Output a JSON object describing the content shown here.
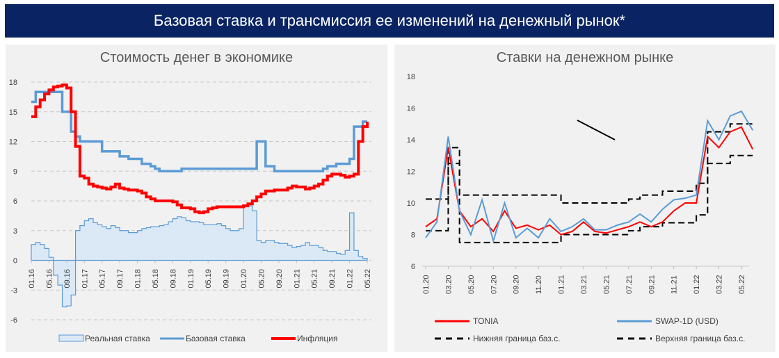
{
  "banner_title": "Базовая ставка и трансмиссия ее изменений на денежный рынок*",
  "chart_data": [
    {
      "type": "line",
      "title": "Стоимость денег в экономике",
      "x_tick_labels": [
        "01.16",
        "05.16",
        "09.16",
        "01.17",
        "05.17",
        "09.17",
        "01.18",
        "05.18",
        "09.18",
        "01.19",
        "05.19",
        "09.19",
        "01.20",
        "05.20",
        "09.20",
        "01.21",
        "05.21",
        "09.21",
        "01.22",
        "05.22"
      ],
      "x_range": [
        "01.16",
        "05.22"
      ],
      "ylim": [
        -6,
        18
      ],
      "y_ticks": [
        -6,
        -3,
        0,
        3,
        6,
        9,
        12,
        15,
        18
      ],
      "grid": true,
      "legend_position": "bottom",
      "frequency": "monthly",
      "series": [
        {
          "name": "Реальная ставка",
          "style": "area",
          "color": "#5b9bd5",
          "fill": "#dbe9f6",
          "values": [
            1.6,
            1.8,
            1.6,
            1.2,
            0.3,
            -1.5,
            -2.5,
            -4.7,
            -4.6,
            -3.5,
            3.0,
            3.5,
            4.0,
            4.2,
            3.8,
            3.6,
            3.4,
            3.2,
            3.5,
            3.3,
            3.0,
            3.0,
            2.8,
            2.8,
            3.0,
            3.2,
            3.3,
            3.4,
            3.4,
            3.5,
            3.6,
            3.9,
            4.2,
            4.4,
            4.3,
            4.0,
            3.9,
            3.9,
            3.8,
            3.6,
            3.6,
            3.6,
            3.7,
            3.5,
            3.2,
            3.0,
            3.0,
            3.2,
            5.6,
            5.5,
            5.0,
            2.0,
            1.8,
            2.0,
            2.0,
            1.8,
            1.7,
            1.7,
            1.5,
            1.3,
            1.4,
            1.5,
            1.8,
            1.5,
            1.5,
            1.3,
            1.0,
            0.9,
            0.9,
            0.7,
            0.6,
            1.0,
            4.8,
            1.0,
            0.4,
            0.2,
            0.0
          ]
        },
        {
          "name": "Базовая ставка",
          "style": "step",
          "color": "#5b9bd5",
          "values": [
            16,
            17,
            17,
            17,
            17,
            17,
            17,
            15,
            15,
            13,
            12.5,
            12,
            12,
            12,
            12,
            12,
            11,
            11,
            11,
            11,
            10.5,
            10.5,
            10.25,
            10.25,
            10.25,
            9.75,
            9.75,
            9.5,
            9.25,
            9,
            9,
            9,
            9,
            9,
            9.25,
            9.25,
            9.25,
            9.25,
            9.25,
            9.25,
            9.25,
            9.25,
            9.25,
            9.25,
            9.25,
            9.25,
            9.25,
            9.25,
            9.25,
            9.25,
            9.25,
            12,
            12,
            9.5,
            9.5,
            9,
            9,
            9,
            9,
            9,
            9,
            9,
            9,
            9,
            9,
            9,
            9.25,
            9.5,
            9.5,
            9.75,
            9.75,
            9.75,
            10.25,
            13.5,
            13.5,
            14,
            14
          ]
        },
        {
          "name": "Инфляция",
          "style": "step",
          "color": "#ff0000",
          "values": [
            14.5,
            15.5,
            16.2,
            16.8,
            17.2,
            17.5,
            17.6,
            17.7,
            17.4,
            15,
            11.5,
            8.5,
            8.3,
            7.7,
            7.5,
            7.4,
            7.3,
            7.2,
            7.4,
            7.7,
            7.3,
            7.2,
            7.1,
            7.1,
            7.0,
            6.8,
            6.4,
            6.2,
            6.0,
            6.0,
            6.0,
            6.0,
            5.9,
            5.6,
            5.3,
            5.3,
            5.2,
            4.9,
            4.8,
            4.9,
            5.2,
            5.3,
            5.4,
            5.4,
            5.4,
            5.4,
            5.4,
            5.4,
            5.5,
            5.7,
            6.0,
            6.4,
            6.7,
            7.0,
            7.0,
            7.1,
            7.1,
            7.1,
            7.3,
            7.5,
            7.4,
            7.4,
            7.2,
            7.3,
            7.5,
            7.7,
            8.1,
            8.5,
            8.7,
            8.7,
            8.6,
            8.4,
            8.5,
            8.7,
            12,
            13.5,
            14
          ]
        }
      ]
    },
    {
      "type": "line",
      "title": "Ставки на денежном рынке",
      "x_tick_labels": [
        "01.20",
        "03.20",
        "05.20",
        "07.20",
        "09.20",
        "11.20",
        "01.21",
        "03.21",
        "05.21",
        "07.21",
        "09.21",
        "11.21",
        "01.22",
        "03.22",
        "05.22"
      ],
      "x_range": [
        "01.20",
        "06.22"
      ],
      "ylim": [
        6,
        18
      ],
      "y_ticks": [
        6,
        8,
        10,
        12,
        14,
        16,
        18
      ],
      "grid": false,
      "legend_position": "bottom",
      "frequency": "monthly",
      "series": [
        {
          "name": "TONIA",
          "style": "line",
          "color": "#ff0000",
          "values": [
            8.5,
            9.0,
            13.5,
            9.5,
            8.5,
            9.0,
            8.2,
            9.5,
            8.4,
            8.6,
            8.3,
            8.6,
            8.0,
            8.2,
            8.8,
            8.2,
            8.1,
            8.3,
            8.5,
            8.8,
            8.5,
            8.8,
            9.5,
            10,
            10,
            14.2,
            13.5,
            14.5,
            14.8,
            13.4
          ]
        },
        {
          "name": "SWAP-1D (USD)",
          "style": "line",
          "color": "#5b9bd5",
          "values": [
            7.8,
            8.8,
            14.2,
            9.5,
            8.0,
            10.2,
            7.6,
            10.0,
            7.8,
            8.4,
            7.8,
            9.0,
            8.2,
            8.5,
            9.0,
            8.3,
            8.3,
            8.6,
            8.8,
            9.3,
            8.8,
            9.6,
            10.2,
            10.3,
            10.5,
            15.2,
            14.0,
            15.5,
            15.8,
            14.6
          ]
        },
        {
          "name": "Нижняя граница баз.с.",
          "style": "dashed-step",
          "color": "#000000",
          "values": [
            8.25,
            8.25,
            12.5,
            7.5,
            7.5,
            7.5,
            7.5,
            7.5,
            7.5,
            7.5,
            7.5,
            7.5,
            8,
            8,
            8,
            8,
            8,
            8,
            8.25,
            8.5,
            8.5,
            8.75,
            8.75,
            8.75,
            9.25,
            12.5,
            12.5,
            13,
            13,
            13
          ]
        },
        {
          "name": "Верхняя граница баз.с.",
          "style": "dashed-step",
          "color": "#000000",
          "values": [
            10.25,
            10.25,
            13.5,
            10.5,
            10.5,
            10.5,
            10.5,
            10.5,
            10.5,
            10.5,
            10.5,
            10.5,
            10,
            10,
            10,
            10,
            10,
            10,
            10.25,
            10.5,
            10.5,
            10.75,
            10.75,
            10.75,
            11.25,
            14.5,
            14.5,
            15,
            15,
            15
          ]
        }
      ]
    }
  ]
}
